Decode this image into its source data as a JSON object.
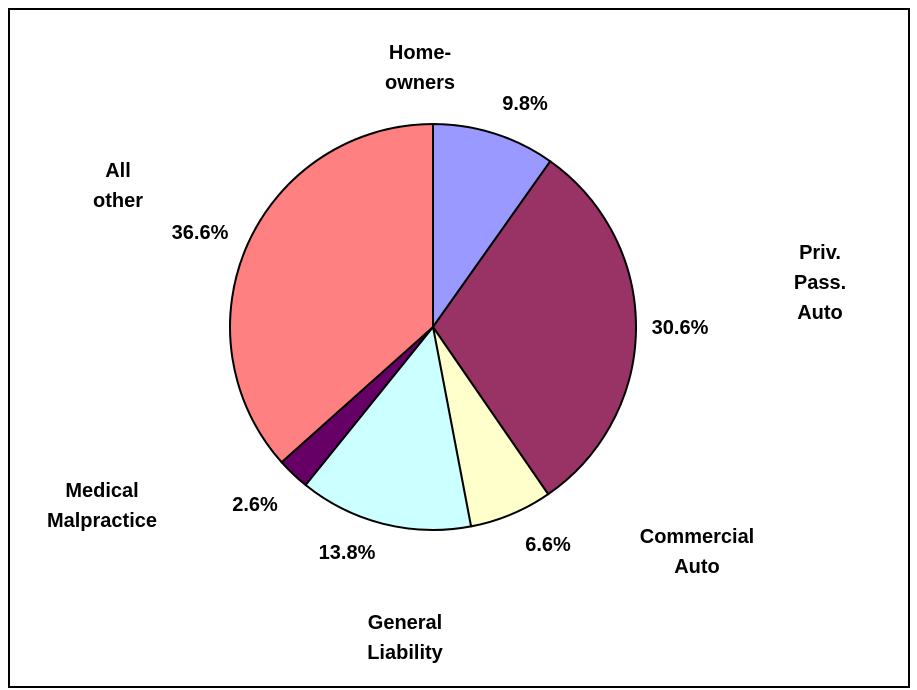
{
  "chart_data": {
    "type": "pie",
    "categories": [
      "Home-\nowners",
      "Priv. Pass.\nAuto",
      "Commercial\nAuto",
      "General\nLiability",
      "Medical\nMalpractice",
      "All\nother"
    ],
    "values": [
      9.8,
      30.6,
      6.6,
      13.8,
      2.6,
      36.6
    ],
    "value_labels": [
      "9.8%",
      "30.6%",
      "6.6%",
      "13.8%",
      "2.6%",
      "36.6%"
    ],
    "colors": [
      "#9999ff",
      "#993366",
      "#ffffcc",
      "#ccffff",
      "#660066",
      "#ff8080"
    ]
  }
}
